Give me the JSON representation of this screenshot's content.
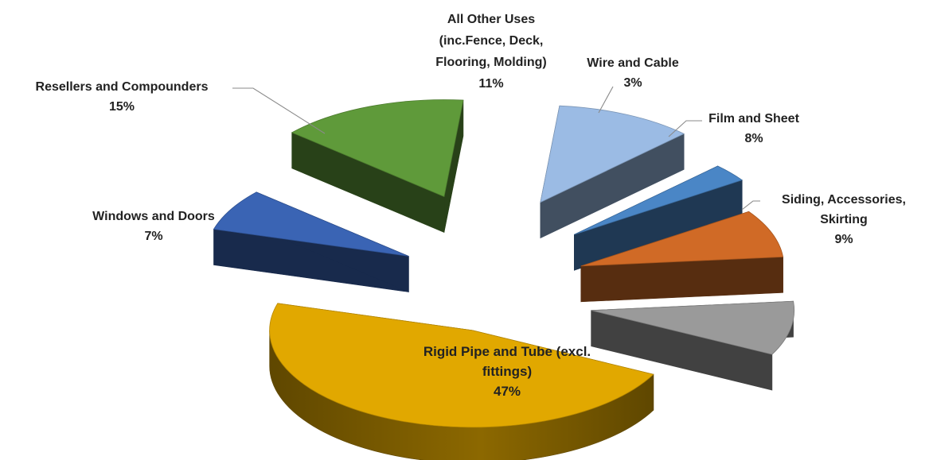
{
  "chart_data": {
    "type": "pie",
    "title": "",
    "slices": [
      {
        "label_lines": [
          "Rigid Pipe and Tube (excl.",
          "fittings)"
        ],
        "value": 47,
        "value_label": "47%",
        "color": "#e1a800"
      },
      {
        "label_lines": [
          "Windows and Doors"
        ],
        "value": 7,
        "value_label": "7%",
        "color": "#3a64b4"
      },
      {
        "label_lines": [
          "Resellers and Compounders"
        ],
        "value": 15,
        "value_label": "15%",
        "color": "#5f9a3a"
      },
      {
        "label_lines": [
          "All Other Uses",
          "(inc.Fence, Deck,",
          "Flooring, Molding)"
        ],
        "value": 11,
        "value_label": "11%",
        "color": "#9bbbe4"
      },
      {
        "label_lines": [
          "Wire and Cable"
        ],
        "value": 3,
        "value_label": "3%",
        "color": "#4a86c6"
      },
      {
        "label_lines": [
          "Film and Sheet"
        ],
        "value": 8,
        "value_label": "8%",
        "color": "#d06a26"
      },
      {
        "label_lines": [
          "Siding, Accessories,",
          "Skirting"
        ],
        "value": 9,
        "value_label": "9%",
        "color": "#9a9a9a"
      }
    ],
    "legend": "none",
    "style": "3D exploded pie with leader lines"
  }
}
